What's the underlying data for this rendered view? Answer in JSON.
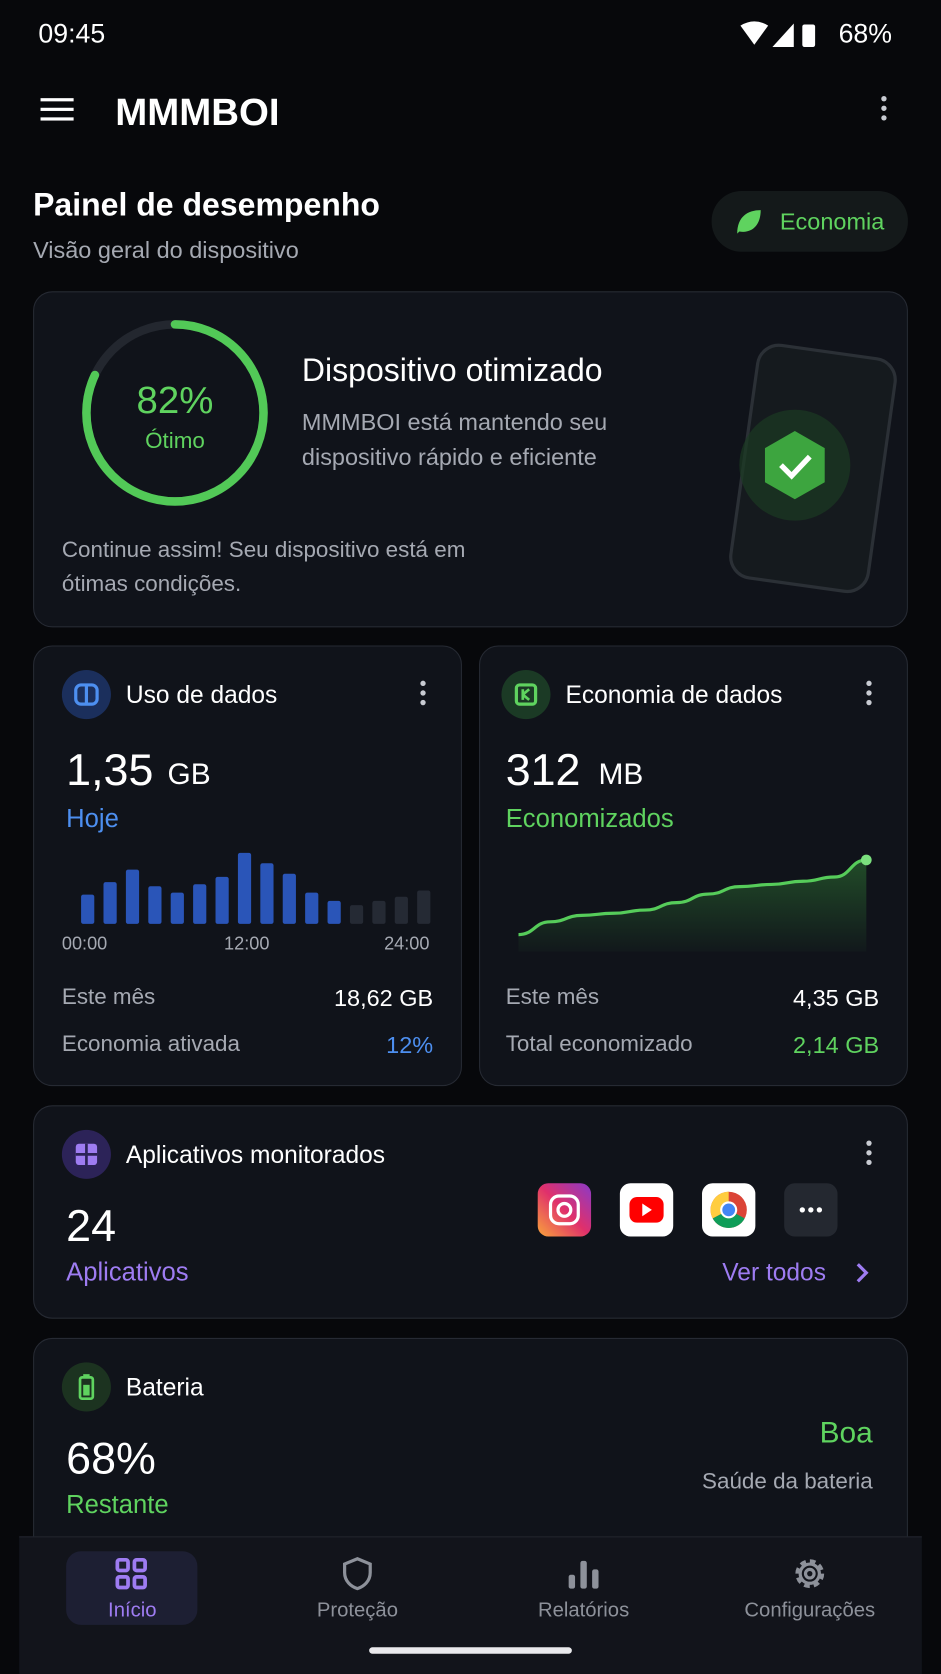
{
  "status_bar": {
    "time": "09:45",
    "battery": "68%"
  },
  "app_bar": {
    "title": "MMMBOI"
  },
  "header": {
    "title": "Painel de desempenho",
    "subtitle": "Visão geral do dispositivo",
    "mode": "Economia"
  },
  "status_card": {
    "score": 82,
    "score_label": "82%",
    "rating": "Ótimo",
    "title": "Dispositivo otimizado",
    "description": "MMMBOI está mantendo seu dispositivo rápido e eficiente",
    "footer": "Continue assim! Seu dispositivo está em ótimas condições."
  },
  "data_usage": {
    "title": "Uso de dados",
    "value": "1,35",
    "unit": "GB",
    "period": "Hoje",
    "bars": [
      28,
      40,
      52,
      36,
      30,
      38,
      45,
      68,
      58,
      48,
      30,
      22,
      18,
      22,
      26,
      32
    ],
    "axis_labels": [
      "00:00",
      "12:00",
      "24:00"
    ],
    "rows": [
      {
        "label": "Este mês",
        "value": "18,62 GB"
      },
      {
        "label": "Economia ativada",
        "value": "12%"
      }
    ]
  },
  "data_saver": {
    "title": "Economia de dados",
    "value": "312",
    "unit": "MB",
    "period": "Economizados",
    "curve": [
      10,
      22,
      28,
      30,
      33,
      40,
      48,
      55,
      57,
      60,
      64,
      80
    ],
    "rows": [
      {
        "label": "Este mês",
        "value": "4,35 GB"
      },
      {
        "label": "Total economizado",
        "value": "2,14 GB"
      }
    ]
  },
  "apps": {
    "title": "Aplicativos monitorados",
    "count": "24",
    "label": "Aplicativos",
    "link": "Ver todos"
  },
  "battery": {
    "title": "Bateria",
    "value": "68%",
    "label": "Restante",
    "health": "Boa",
    "health_label": "Saúde da bateria"
  },
  "nav": {
    "items": [
      "Início",
      "Proteção",
      "Relatórios",
      "Configurações"
    ]
  }
}
